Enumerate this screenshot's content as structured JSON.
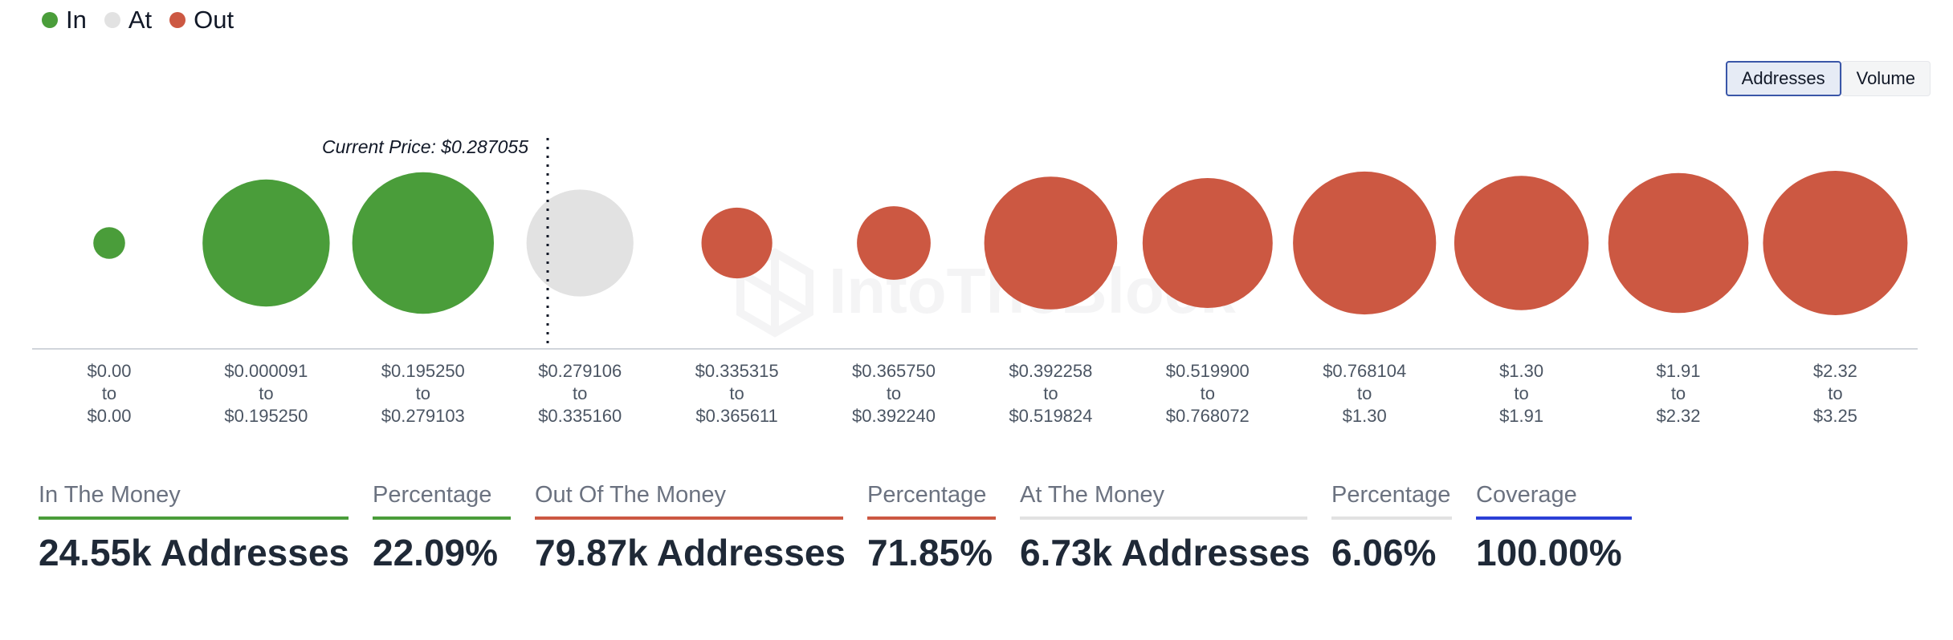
{
  "legend": {
    "in_label": "In",
    "at_label": "At",
    "out_label": "Out"
  },
  "colors": {
    "in": "#4a9d3a",
    "at": "#e2e2e2",
    "out": "#cc5842",
    "coverage": "#2b3fd6"
  },
  "toggle": {
    "addresses_label": "Addresses",
    "volume_label": "Volume",
    "active": "addresses"
  },
  "watermark": "IntoTheBlock",
  "chart_data": {
    "type": "bubble",
    "current_price_label": "Current Price: $0.287055",
    "current_price_position": "between bins 3 and 4",
    "grid": false,
    "legend_position": "top-left",
    "categories": [
      {
        "from": "$0.00",
        "to": "$0.00",
        "status": "in",
        "relative_size": 0.22
      },
      {
        "from": "$0.000091",
        "to": "$0.195250",
        "status": "in",
        "relative_size": 0.88
      },
      {
        "from": "$0.195250",
        "to": "$0.279103",
        "status": "in",
        "relative_size": 0.98
      },
      {
        "from": "$0.279106",
        "to": "$0.335160",
        "status": "at",
        "relative_size": 0.74
      },
      {
        "from": "$0.335315",
        "to": "$0.365611",
        "status": "out",
        "relative_size": 0.49
      },
      {
        "from": "$0.365750",
        "to": "$0.392240",
        "status": "out",
        "relative_size": 0.51
      },
      {
        "from": "$0.392258",
        "to": "$0.519824",
        "status": "out",
        "relative_size": 0.92
      },
      {
        "from": "$0.519900",
        "to": "$0.768072",
        "status": "out",
        "relative_size": 0.9
      },
      {
        "from": "$0.768104",
        "to": "$1.30",
        "status": "out",
        "relative_size": 0.99
      },
      {
        "from": "$1.30",
        "to": "$1.91",
        "status": "out",
        "relative_size": 0.93
      },
      {
        "from": "$1.91",
        "to": "$2.32",
        "status": "out",
        "relative_size": 0.97
      },
      {
        "from": "$2.32",
        "to": "$3.25",
        "status": "out",
        "relative_size": 1.0
      }
    ],
    "range_connector": "to"
  },
  "stats": {
    "in_the_money": {
      "label": "In The Money",
      "value": "24.55k Addresses"
    },
    "in_percentage": {
      "label": "Percentage",
      "value": "22.09%"
    },
    "out_of_the_money": {
      "label": "Out Of The Money",
      "value": "79.87k Addresses"
    },
    "out_percentage": {
      "label": "Percentage",
      "value": "71.85%"
    },
    "at_the_money": {
      "label": "At The Money",
      "value": "6.73k Addresses"
    },
    "at_percentage": {
      "label": "Percentage",
      "value": "6.06%"
    },
    "coverage": {
      "label": "Coverage",
      "value": "100.00%"
    }
  }
}
